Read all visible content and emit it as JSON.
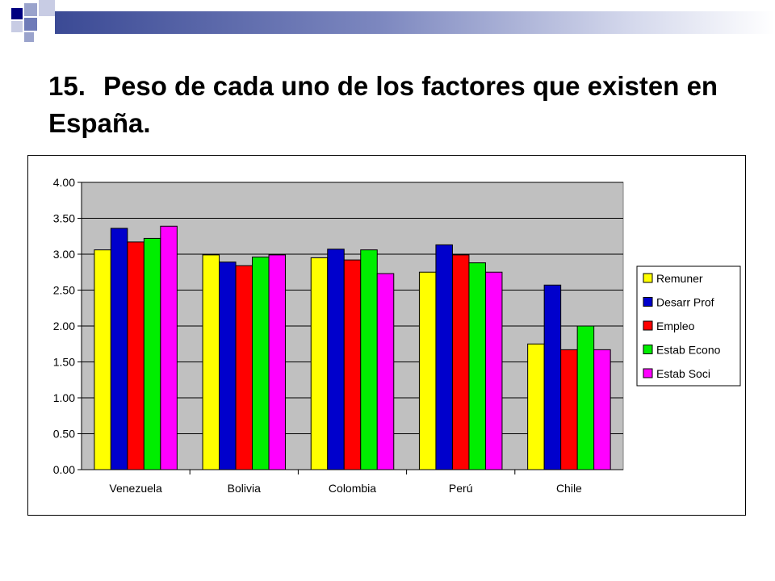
{
  "slide": {
    "title_number": "15.",
    "title_text": "Peso de cada uno de los factores que existen en España."
  },
  "chart_data": {
    "type": "bar",
    "categories": [
      "Venezuela",
      "Bolivia",
      "Colombia",
      "Perú",
      "Chile"
    ],
    "series": [
      {
        "name": "Remuner",
        "color": "#ffff00",
        "values": [
          3.06,
          2.99,
          2.95,
          2.75,
          1.75
        ]
      },
      {
        "name": "Desarr Prof",
        "color": "#0000cc",
        "values": [
          3.36,
          2.89,
          3.07,
          3.13,
          2.57
        ]
      },
      {
        "name": "Empleo",
        "color": "#ff0000",
        "values": [
          3.17,
          2.84,
          2.92,
          2.99,
          1.67
        ]
      },
      {
        "name": "Estab Econo",
        "color": "#00ee00",
        "values": [
          3.22,
          2.96,
          3.06,
          2.88,
          2.0
        ]
      },
      {
        "name": "Estab Soci",
        "color": "#ff00ff",
        "values": [
          3.39,
          2.99,
          2.73,
          2.75,
          1.67
        ]
      }
    ],
    "yticks": [
      "0.00",
      "0.50",
      "1.00",
      "1.50",
      "2.00",
      "2.50",
      "3.00",
      "3.50",
      "4.00"
    ],
    "ylim": [
      0,
      4
    ],
    "grid": true,
    "legend_position": "right",
    "plot_background": "#c0c0c0"
  }
}
